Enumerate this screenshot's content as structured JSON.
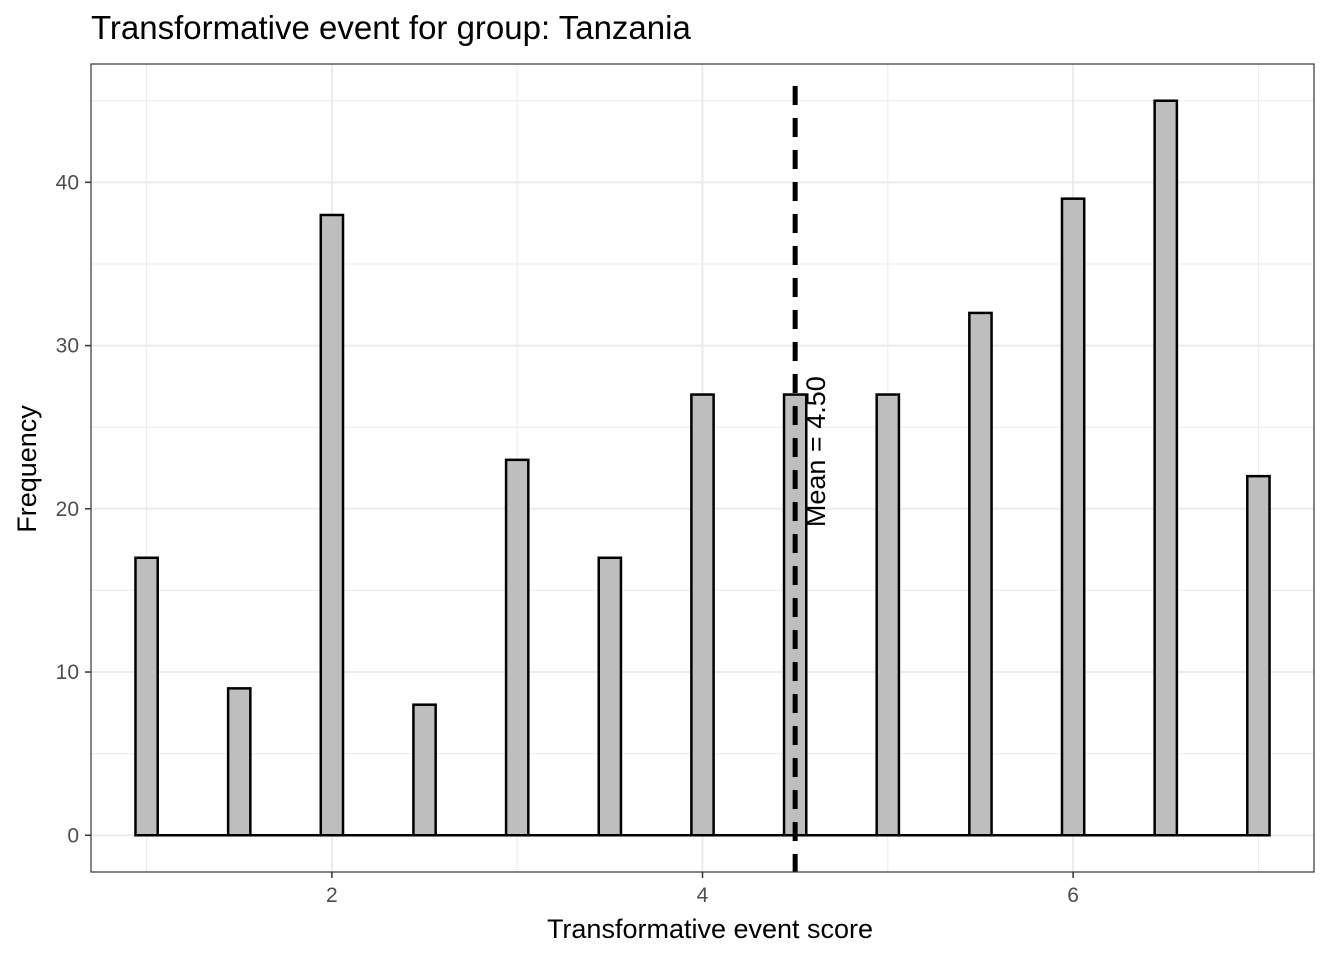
{
  "chart_data": {
    "type": "bar",
    "title": "Transformative event for group: Tanzania",
    "xlabel": "Transformative event score",
    "ylabel": "Frequency",
    "x": [
      1.0,
      1.5,
      2.0,
      2.5,
      3.0,
      3.5,
      4.0,
      4.5,
      5.0,
      5.5,
      6.0,
      6.5,
      7.0
    ],
    "values": [
      17,
      9,
      38,
      8,
      23,
      17,
      27,
      27,
      27,
      32,
      39,
      45,
      22
    ],
    "xlim": [
      0.7,
      7.3
    ],
    "ylim": [
      -2.25,
      47.25
    ],
    "x_ticks": [
      2,
      4,
      6
    ],
    "y_ticks": [
      0,
      10,
      20,
      30,
      40
    ],
    "grid": true,
    "mean": 4.5,
    "mean_label": "Mean = 4.50",
    "colors": {
      "bar_fill": "#bebebe",
      "bar_stroke": "#000000",
      "grid": "#ebebeb",
      "panel_border": "#333333",
      "mean_line": "#000000"
    }
  }
}
